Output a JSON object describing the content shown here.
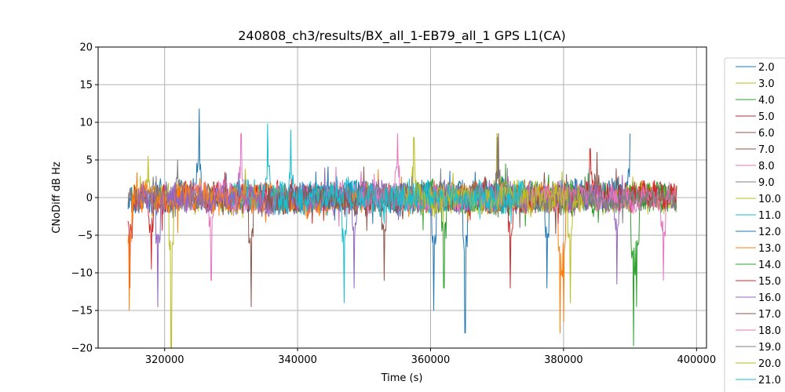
{
  "chart_data": {
    "type": "line",
    "title": "240808_ch3/results/BX_all_1-EB79_all_1 GPS L1(CA)",
    "xlabel": "Time (s)",
    "ylabel": "CNoDiff dB Hz",
    "xlim": [
      310000,
      401500
    ],
    "ylim": [
      -20,
      20
    ],
    "x_ticks": [
      320000,
      340000,
      360000,
      380000,
      400000
    ],
    "x_tick_labels": [
      "320000",
      "340000",
      "360000",
      "380000",
      "400000"
    ],
    "y_ticks": [
      -20,
      -15,
      -10,
      -5,
      0,
      5,
      10,
      15,
      20
    ],
    "y_tick_labels": [
      "−20",
      "−15",
      "−10",
      "−5",
      "0",
      "5",
      "10",
      "15",
      "20"
    ],
    "grid": true,
    "legend_position": "outside-right",
    "series": [
      {
        "name": "2.0",
        "color": "#1f77b4",
        "x_range": [
          314500,
          371000
        ],
        "mean": 0.0,
        "amp": 1.8,
        "spikes": [
          [
            325200,
            11.8
          ],
          [
            365200,
            -18.0
          ],
          [
            360500,
            -15.0
          ]
        ]
      },
      {
        "name": "3.0",
        "color": "#bcbd22",
        "x_range": [
          315000,
          346000
        ],
        "mean": 0.0,
        "amp": 1.8,
        "spikes": [
          [
            321000,
            -20.0
          ],
          [
            317500,
            5.5
          ]
        ]
      },
      {
        "name": "4.0",
        "color": "#2ca02c",
        "x_range": [
          356000,
          397000
        ],
        "mean": 0.0,
        "amp": 1.8,
        "spikes": [
          [
            390500,
            -19.7
          ],
          [
            391000,
            -14.5
          ]
        ]
      },
      {
        "name": "5.0",
        "color": "#d62728",
        "x_range": [
          314500,
          345000
        ],
        "mean": 0.0,
        "amp": 1.8,
        "spikes": [
          [
            314800,
            -12.0
          ],
          [
            318000,
            -9.5
          ]
        ]
      },
      {
        "name": "6.0",
        "color": "#8c564b",
        "x_range": [
          325000,
          356000
        ],
        "mean": 0.0,
        "amp": 1.8,
        "spikes": [
          [
            333000,
            -14.5
          ],
          [
            353000,
            -11.0
          ]
        ]
      },
      {
        "name": "7.0",
        "color": "#8c564b",
        "x_range": [
          370000,
          397000
        ],
        "mean": 0.0,
        "amp": 1.6,
        "spikes": [
          [
            385000,
            6.0
          ]
        ]
      },
      {
        "name": "8.0",
        "color": "#e377c2",
        "x_range": [
          323000,
          350000
        ],
        "mean": 0.0,
        "amp": 1.8,
        "spikes": [
          [
            331500,
            8.5
          ],
          [
            327000,
            -11.0
          ]
        ]
      },
      {
        "name": "9.0",
        "color": "#7f7f7f",
        "x_range": [
          314500,
          327000
        ],
        "mean": 0.0,
        "amp": 1.5,
        "spikes": [
          [
            322000,
            5.0
          ]
        ]
      },
      {
        "name": "10.0",
        "color": "#bcbd22",
        "x_range": [
          357000,
          397000
        ],
        "mean": 0.0,
        "amp": 1.8,
        "spikes": [
          [
            370000,
            8.5
          ],
          [
            357500,
            8.0
          ]
        ]
      },
      {
        "name": "11.0",
        "color": "#17becf",
        "x_range": [
          330000,
          372000
        ],
        "mean": 0.0,
        "amp": 1.9,
        "spikes": [
          [
            335500,
            9.8
          ],
          [
            347000,
            -14.0
          ]
        ]
      },
      {
        "name": "12.0",
        "color": "#1f77b4",
        "x_range": [
          340000,
          390000
        ],
        "mean": 0.0,
        "amp": 1.8,
        "spikes": [
          [
            377500,
            -12.0
          ],
          [
            390000,
            8.5
          ]
        ]
      },
      {
        "name": "13.0",
        "color": "#ff7f0e",
        "x_range": [
          314500,
          382000
        ],
        "mean": 0.0,
        "amp": 1.8,
        "spikes": [
          [
            314700,
            -15.0
          ],
          [
            379500,
            -18.0
          ],
          [
            380000,
            -16.5
          ]
        ]
      },
      {
        "name": "14.0",
        "color": "#2ca02c",
        "x_range": [
          358000,
          397000
        ],
        "mean": 0.0,
        "amp": 1.7,
        "spikes": [
          [
            362000,
            -12.0
          ]
        ]
      },
      {
        "name": "15.0",
        "color": "#d62728",
        "x_range": [
          362000,
          397000
        ],
        "mean": 0.0,
        "amp": 1.8,
        "spikes": [
          [
            372000,
            -12.0
          ],
          [
            384000,
            6.5
          ]
        ]
      },
      {
        "name": "16.0",
        "color": "#9467bd",
        "x_range": [
          316000,
          390000
        ],
        "mean": 0.0,
        "amp": 1.8,
        "spikes": [
          [
            319000,
            -14.5
          ],
          [
            348500,
            -12.0
          ],
          [
            388000,
            -11.5
          ]
        ]
      },
      {
        "name": "17.0",
        "color": "#8c564b",
        "x_range": [
          335000,
          372000
        ],
        "mean": 0.0,
        "amp": 1.8,
        "spikes": [
          [
            370200,
            8.5
          ]
        ]
      },
      {
        "name": "18.0",
        "color": "#e377c2",
        "x_range": [
          349000,
          397000
        ],
        "mean": 0.0,
        "amp": 1.8,
        "spikes": [
          [
            395000,
            -11.0
          ],
          [
            355000,
            8.5
          ]
        ]
      },
      {
        "name": "19.0",
        "color": "#7f7f7f",
        "x_range": [
          349000,
          397000
        ],
        "mean": 0.0,
        "amp": 1.2,
        "spikes": [
          [
            370100,
            8.0
          ]
        ]
      },
      {
        "name": "20.0",
        "color": "#bcbd22",
        "x_range": [
          356000,
          383000
        ],
        "mean": 0.0,
        "amp": 1.8,
        "spikes": [
          [
            381000,
            -14.0
          ]
        ]
      },
      {
        "name": "21.0",
        "color": "#17becf",
        "x_range": [
          336000,
          374000
        ],
        "mean": 0.0,
        "amp": 1.8,
        "spikes": [
          [
            339000,
            9.0
          ]
        ]
      }
    ]
  }
}
